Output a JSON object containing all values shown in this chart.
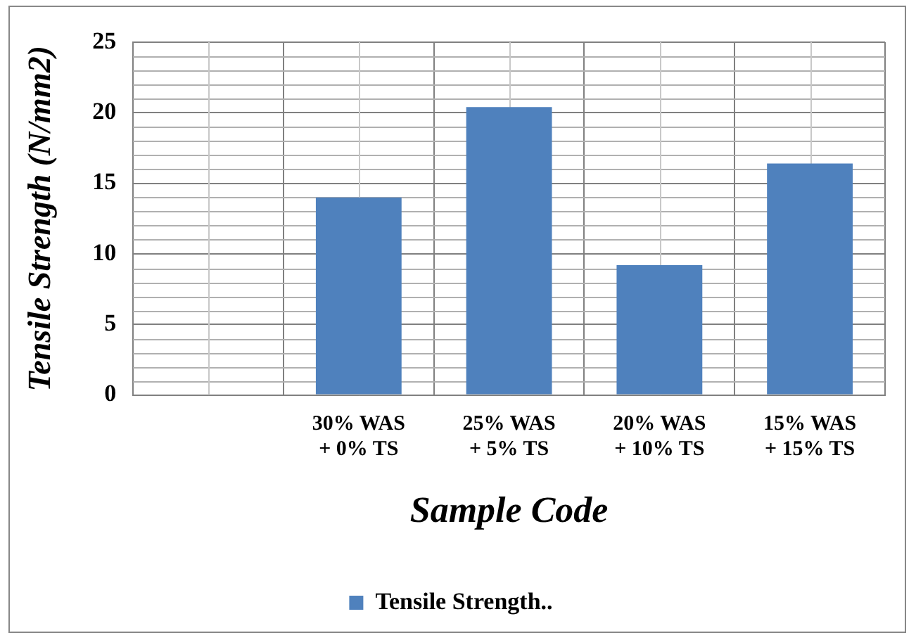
{
  "chart_data": {
    "type": "bar",
    "xlabel": "Sample Code",
    "ylabel": "Tensile Strength (N/mm2)",
    "categories": [
      null,
      "30% WAS\n+ 0% TS",
      "25% WAS\n+ 5% TS",
      "20% WAS\n+ 10% TS",
      "15% WAS\n+ 15% TS"
    ],
    "series": [
      {
        "name": "Tensile Strength..",
        "color": "#4f81bd",
        "values": [
          null,
          14,
          20.4,
          9.2,
          16.4
        ]
      }
    ],
    "ylim": [
      0,
      25
    ],
    "yticks": [
      0,
      5,
      10,
      15,
      20,
      25
    ],
    "grid": true,
    "legend": "bottom"
  }
}
